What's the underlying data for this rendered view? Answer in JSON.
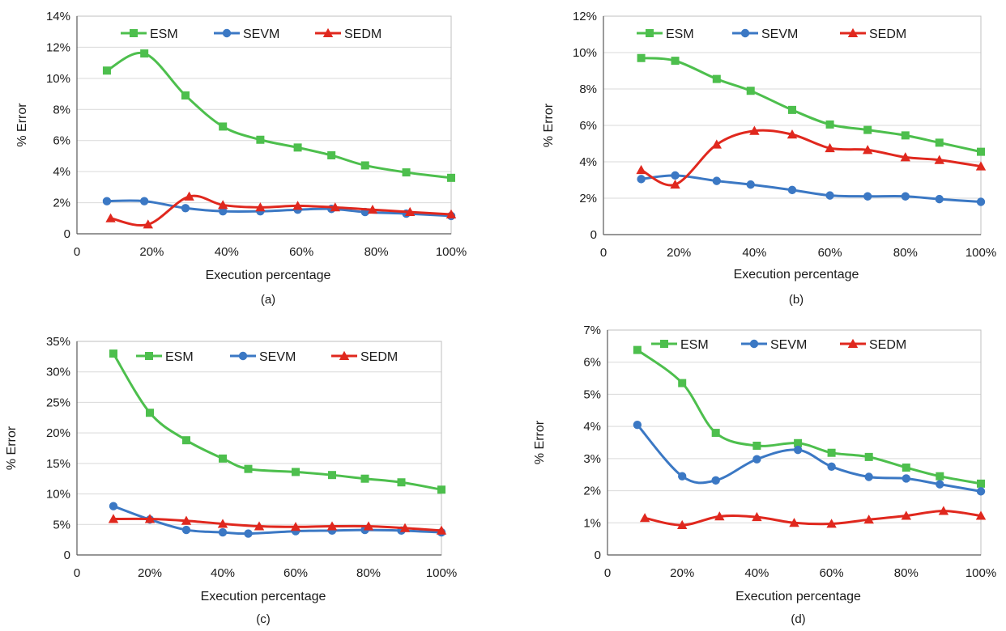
{
  "colors": {
    "ESM": "#4dbf4d",
    "SEVM": "#3b78c4",
    "SEDM": "#e0281e"
  },
  "chart_data": [
    {
      "type": "line",
      "caption": "(a)",
      "xlabel": "Execution percentage",
      "ylabel": "% Error",
      "xlim": [
        0,
        100
      ],
      "ylim": [
        0,
        14
      ],
      "xticks": [
        0,
        20,
        40,
        60,
        80,
        100
      ],
      "xtick_labels": [
        "0",
        "20%",
        "40%",
        "60%",
        "80%",
        "100%"
      ],
      "yticks": [
        0,
        2,
        4,
        6,
        8,
        10,
        12,
        14
      ],
      "ytick_labels": [
        "0",
        "2%",
        "4%",
        "6%",
        "8%",
        "10%",
        "12%",
        "14%"
      ],
      "grid": true,
      "legend": "top",
      "series": [
        {
          "name": "ESM",
          "marker": "square",
          "x": [
            8,
            18,
            29,
            39,
            49,
            59,
            68,
            77,
            88,
            100
          ],
          "y": [
            10.5,
            11.6,
            8.9,
            6.9,
            6.05,
            5.55,
            5.05,
            4.4,
            3.95,
            3.6
          ]
        },
        {
          "name": "SEVM",
          "marker": "circle",
          "x": [
            8,
            18,
            29,
            39,
            49,
            59,
            68,
            77,
            88,
            100
          ],
          "y": [
            2.1,
            2.1,
            1.65,
            1.45,
            1.45,
            1.55,
            1.6,
            1.4,
            1.3,
            1.15
          ]
        },
        {
          "name": "SEDM",
          "marker": "triangle",
          "x": [
            9,
            19,
            30,
            39,
            49,
            59,
            69,
            79,
            89,
            100
          ],
          "y": [
            1.0,
            0.6,
            2.4,
            1.85,
            1.7,
            1.8,
            1.7,
            1.55,
            1.4,
            1.25
          ]
        }
      ]
    },
    {
      "type": "line",
      "caption": "(b)",
      "xlabel": "Execution percentage",
      "ylabel": "% Error",
      "xlim": [
        0,
        100
      ],
      "ylim": [
        0,
        12
      ],
      "xticks": [
        0,
        20,
        40,
        60,
        80,
        100
      ],
      "xtick_labels": [
        "0",
        "20%",
        "40%",
        "60%",
        "80%",
        "100%"
      ],
      "yticks": [
        0,
        2,
        4,
        6,
        8,
        10,
        12
      ],
      "ytick_labels": [
        "0",
        "2%",
        "4%",
        "6%",
        "8%",
        "10%",
        "12%"
      ],
      "grid": true,
      "legend": "top",
      "series": [
        {
          "name": "ESM",
          "marker": "square",
          "x": [
            10,
            19,
            30,
            39,
            50,
            60,
            70,
            80,
            89,
            100
          ],
          "y": [
            9.7,
            9.55,
            8.55,
            7.9,
            6.85,
            6.05,
            5.75,
            5.45,
            5.05,
            4.55
          ]
        },
        {
          "name": "SEVM",
          "marker": "circle",
          "x": [
            10,
            19,
            30,
            39,
            50,
            60,
            70,
            80,
            89,
            100
          ],
          "y": [
            3.05,
            3.25,
            2.95,
            2.75,
            2.45,
            2.15,
            2.1,
            2.1,
            1.95,
            1.8
          ]
        },
        {
          "name": "SEDM",
          "marker": "triangle",
          "x": [
            10,
            19,
            30,
            40,
            50,
            60,
            70,
            80,
            89,
            100
          ],
          "y": [
            3.55,
            2.75,
            4.95,
            5.7,
            5.5,
            4.75,
            4.65,
            4.25,
            4.1,
            3.75
          ]
        }
      ]
    },
    {
      "type": "line",
      "caption": "(c)",
      "xlabel": "Execution percentage",
      "ylabel": "% Error",
      "xlim": [
        0,
        100
      ],
      "ylim": [
        0,
        35
      ],
      "xticks": [
        0,
        20,
        40,
        60,
        80,
        100
      ],
      "xtick_labels": [
        "0",
        "20%",
        "40%",
        "60%",
        "80%",
        "100%"
      ],
      "yticks": [
        0,
        5,
        10,
        15,
        20,
        25,
        30,
        35
      ],
      "ytick_labels": [
        "0",
        "5%",
        "10%",
        "15%",
        "20%",
        "25%",
        "30%",
        "35%"
      ],
      "grid": true,
      "legend": "top",
      "series": [
        {
          "name": "ESM",
          "marker": "square",
          "x": [
            10,
            20,
            30,
            40,
            47,
            60,
            70,
            79,
            89,
            100
          ],
          "y": [
            33,
            23.3,
            18.8,
            15.8,
            14.1,
            13.6,
            13.1,
            12.5,
            11.9,
            10.7
          ]
        },
        {
          "name": "SEVM",
          "marker": "circle",
          "x": [
            10,
            20,
            30,
            40,
            47,
            60,
            70,
            79,
            89,
            100
          ],
          "y": [
            8.0,
            5.8,
            4.1,
            3.7,
            3.5,
            3.9,
            4.0,
            4.1,
            4.0,
            3.7
          ]
        },
        {
          "name": "SEDM",
          "marker": "triangle",
          "x": [
            10,
            20,
            30,
            40,
            50,
            60,
            70,
            80,
            90,
            100
          ],
          "y": [
            5.9,
            5.9,
            5.6,
            5.1,
            4.7,
            4.6,
            4.7,
            4.7,
            4.4,
            4.0
          ]
        }
      ]
    },
    {
      "type": "line",
      "caption": "(d)",
      "xlabel": "Execution percentage",
      "ylabel": "% Error",
      "xlim": [
        0,
        100
      ],
      "ylim": [
        0,
        7
      ],
      "xticks": [
        0,
        20,
        40,
        60,
        80,
        100
      ],
      "xtick_labels": [
        "0",
        "20%",
        "40%",
        "60%",
        "80%",
        "100%"
      ],
      "yticks": [
        0,
        1,
        2,
        3,
        4,
        5,
        6,
        7
      ],
      "ytick_labels": [
        "0",
        "1%",
        "2%",
        "3%",
        "4%",
        "5%",
        "6%",
        "7%"
      ],
      "grid": true,
      "legend": "top",
      "series": [
        {
          "name": "ESM",
          "marker": "square",
          "x": [
            8,
            20,
            29,
            40,
            51,
            60,
            70,
            80,
            89,
            100
          ],
          "y": [
            6.38,
            5.35,
            3.8,
            3.4,
            3.48,
            3.18,
            3.05,
            2.72,
            2.45,
            2.22
          ]
        },
        {
          "name": "SEVM",
          "marker": "circle",
          "x": [
            8,
            20,
            29,
            40,
            51,
            60,
            70,
            80,
            89,
            100
          ],
          "y": [
            4.05,
            2.45,
            2.32,
            2.98,
            3.27,
            2.75,
            2.43,
            2.38,
            2.2,
            1.98
          ]
        },
        {
          "name": "SEDM",
          "marker": "triangle",
          "x": [
            10,
            20,
            30,
            40,
            50,
            60,
            70,
            80,
            90,
            100
          ],
          "y": [
            1.15,
            0.93,
            1.2,
            1.18,
            1.0,
            0.97,
            1.1,
            1.22,
            1.37,
            1.22
          ]
        }
      ]
    }
  ]
}
